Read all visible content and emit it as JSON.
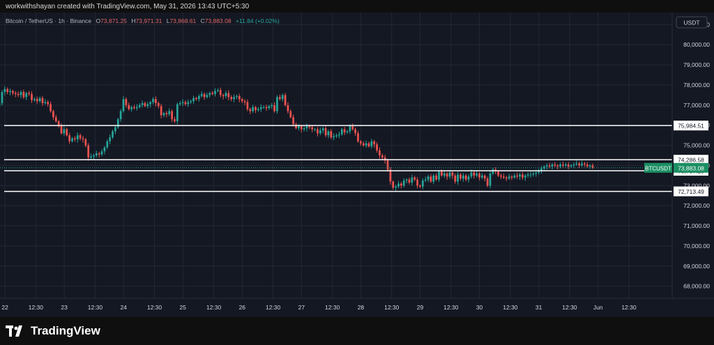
{
  "header": {
    "caption": "workwithshayan created with TradingView.com, May 31, 2026 13:43 UTC+5:30"
  },
  "legend": {
    "symbol": "Bitcoin / TetherUS · 1h · Binance",
    "o_label": "O",
    "o_value": "73,871.25",
    "h_label": "H",
    "h_value": "73,971.31",
    "l_label": "L",
    "l_value": "73,868.61",
    "c_label": "C",
    "c_value": "73,883.08",
    "change": "+11.84 (+0.02%)"
  },
  "currency_badge": "USDT",
  "footer": {
    "brand": "TradingView"
  },
  "colors": {
    "background": "#141823",
    "grid": "#232734",
    "up": "#26a69a",
    "down": "#ef5350",
    "price_badge": "#1b8f63",
    "level_line": "#ffffff"
  },
  "chart_data": {
    "type": "candlestick",
    "title": "",
    "symbol": "BTCUSDT",
    "interval": "1h",
    "exchange": "Binance",
    "ylim": [
      67400,
      81600
    ],
    "grid": true,
    "y_ticks": [
      68000,
      69000,
      70000,
      71000,
      72000,
      73000,
      74000,
      75000,
      76000,
      77000,
      78000,
      79000,
      80000,
      81000
    ],
    "y_tick_labels": [
      "68,000.00",
      "69,000.00",
      "70,000.00",
      "71,000.00",
      "72,000.00",
      "73,000.00",
      "74,000.00",
      "75,000.00",
      "76,000.00",
      "77,000.00",
      "78,000.00",
      "79,000.00",
      "80,000.00",
      "81,000.00"
    ],
    "x_tick_labels": [
      "22",
      "12:30",
      "23",
      "12:30",
      "24",
      "12:30",
      "25",
      "12:30",
      "26",
      "12:30",
      "27",
      "12:30",
      "28",
      "12:30",
      "29",
      "12:30",
      "30",
      "12:30",
      "31",
      "12:30",
      "Jun",
      "12:30"
    ],
    "x_ticks_hours": [
      0,
      12.5,
      24,
      36.5,
      48,
      60.5,
      72,
      84.5,
      96,
      108.5,
      120,
      132.5,
      144,
      156.5,
      168,
      180.5,
      192,
      204.5,
      216,
      228.5,
      240,
      252.5
    ],
    "x_start_hours": -2,
    "x_end_hours": 270,
    "levels": [
      {
        "value": 75984.51,
        "label": "75,984.51"
      },
      {
        "value": 74286.58,
        "label": "74,286.58"
      },
      {
        "value": 73737.25,
        "label": "73,737.25"
      },
      {
        "value": 72713.49,
        "label": "72,713.49"
      }
    ],
    "last_price": {
      "symbol": "BTCUSDT",
      "value": 73883.08,
      "label": "73,883.08"
    },
    "closes": [
      77100,
      77650,
      77800,
      77650,
      77700,
      77600,
      77550,
      77500,
      77650,
      77400,
      77600,
      77550,
      77250,
      77300,
      77200,
      77350,
      77100,
      77150,
      77050,
      76700,
      76400,
      76200,
      76000,
      75600,
      75800,
      75500,
      75200,
      75350,
      75300,
      75500,
      75350,
      75300,
      75000,
      74400,
      74450,
      74500,
      74600,
      74550,
      74700,
      74900,
      75200,
      75400,
      75700,
      75900,
      76300,
      76700,
      77300,
      77000,
      76800,
      76900,
      76850,
      76900,
      77000,
      77100,
      76950,
      77050,
      77150,
      77300,
      77100,
      76950,
      76500,
      76600,
      76550,
      76700,
      76300,
      76200,
      77050,
      77100,
      77150,
      77050,
      77150,
      77200,
      77350,
      77300,
      77450,
      77550,
      77400,
      77500,
      77600,
      77550,
      77700,
      77750,
      77500,
      77450,
      77600,
      77400,
      77300,
      77400,
      77450,
      77300,
      77200,
      77150,
      76800,
      76700,
      76900,
      76750,
      76800,
      76900,
      76900,
      76850,
      76950,
      77000,
      76700,
      77400,
      77300,
      77500,
      77000,
      76700,
      76400,
      76050,
      75850,
      75950,
      75800,
      75850,
      75950,
      75900,
      75800,
      75800,
      75600,
      75750,
      75850,
      75500,
      75700,
      75400,
      75450,
      75500,
      75550,
      75800,
      75650,
      75700,
      75950,
      75800,
      75600,
      75200,
      75100,
      75000,
      75100,
      74950,
      75200,
      75050,
      74750,
      74500,
      74400,
      74250,
      73800,
      73200,
      72900,
      72950,
      73100,
      73000,
      73250,
      73300,
      73150,
      73400,
      73300,
      73000,
      72950,
      73250,
      73300,
      73450,
      73200,
      73500,
      73300,
      73700,
      73500,
      73600,
      73450,
      73650,
      73500,
      73200,
      73550,
      73350,
      73500,
      73300,
      73450,
      73650,
      73500,
      73600,
      73400,
      73500,
      73350,
      73000,
      73600,
      73800,
      73700,
      73500,
      73450,
      73400,
      73350,
      73450,
      73400,
      73500,
      73450,
      73550,
      73400,
      73500,
      73550,
      73550,
      73600,
      73650,
      73750,
      73850,
      73950,
      74000,
      73950,
      74050,
      74000,
      73950,
      74050,
      74000,
      74050,
      73950,
      74000,
      74050,
      74100,
      74000,
      74100,
      74050,
      73950,
      74000,
      73883
    ]
  }
}
